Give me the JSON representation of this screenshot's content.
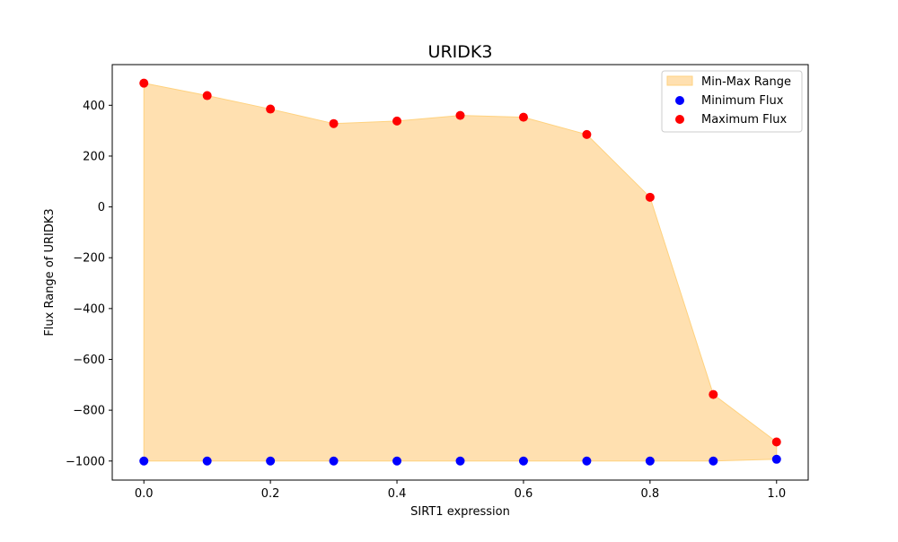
{
  "chart_data": {
    "type": "area",
    "title": "URIDK3",
    "xlabel": "SIRT1 expression",
    "ylabel": "Flux Range of URIDK3",
    "xlim": [
      -0.05,
      1.05
    ],
    "ylim": [
      -1075,
      560
    ],
    "x_ticks": [
      0.0,
      0.2,
      0.4,
      0.6,
      0.8,
      1.0
    ],
    "x_tick_labels": [
      "0.0",
      "0.2",
      "0.4",
      "0.6",
      "0.8",
      "1.0"
    ],
    "y_ticks": [
      -1000,
      -800,
      -600,
      -400,
      -200,
      0,
      200,
      400
    ],
    "y_tick_labels": [
      "−1000",
      "−800",
      "−600",
      "−400",
      "−200",
      "0",
      "200",
      "400"
    ],
    "grid": false,
    "legend_position": "top-right",
    "x": [
      0.0,
      0.1,
      0.2,
      0.3,
      0.4,
      0.5,
      0.6,
      0.7,
      0.8,
      0.9,
      1.0
    ],
    "series": [
      {
        "name": "Min-Max Range",
        "kind": "fill_between",
        "color": "#ffe0b0",
        "edge_color": "#ffd27f"
      },
      {
        "name": "Minimum Flux",
        "kind": "scatter",
        "color": "#0000ff",
        "values": [
          -1000,
          -1000,
          -1000,
          -1000,
          -1000,
          -1000,
          -1000,
          -1000,
          -1000,
          -1000,
          -993
        ]
      },
      {
        "name": "Maximum Flux",
        "kind": "scatter",
        "color": "#ff0000",
        "values": [
          487,
          438,
          385,
          328,
          338,
          360,
          353,
          285,
          38,
          -738,
          -925
        ]
      }
    ]
  }
}
